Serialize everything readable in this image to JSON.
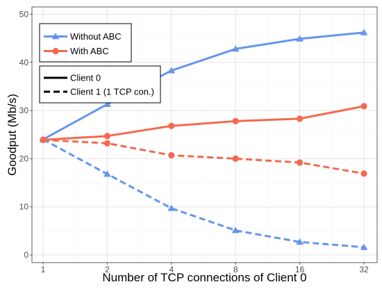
{
  "chart_data": {
    "type": "line",
    "xlabel": "Number of TCP connections of Client 0",
    "ylabel": "Goodput (Mb/s)",
    "x_scale": "log2",
    "categories": [
      "1",
      "2",
      "4",
      "8",
      "16",
      "32"
    ],
    "x": [
      1,
      2,
      4,
      8,
      16,
      32
    ],
    "ylim": [
      0,
      50
    ],
    "yticks": [
      0,
      10,
      20,
      30,
      40,
      50
    ],
    "grid": true,
    "series": [
      {
        "name": "Without ABC",
        "client": "Client 0",
        "values": [
          24.0,
          31.3,
          38.3,
          42.8,
          44.9,
          46.2
        ]
      },
      {
        "name": "With ABC",
        "client": "Client 0",
        "values": [
          23.9,
          24.7,
          26.8,
          27.8,
          28.3,
          30.9
        ]
      },
      {
        "name": "Without ABC",
        "client": "Client 1 (1 TCP con.)",
        "values": [
          24.0,
          16.8,
          9.7,
          5.1,
          2.7,
          1.6
        ]
      },
      {
        "name": "With ABC",
        "client": "Client 1 (1 TCP con.)",
        "values": [
          23.9,
          23.2,
          20.7,
          20.0,
          19.2,
          16.9
        ]
      }
    ],
    "legend": {
      "placement": "top-left",
      "algorithms": [
        {
          "label": "Without ABC",
          "color": "#6495ED",
          "marker": "triangle"
        },
        {
          "label": "With ABC",
          "color": "#F4694E",
          "marker": "circle"
        }
      ],
      "clients": [
        {
          "label": "Client 0",
          "linestyle": "solid"
        },
        {
          "label": "Client 1 (1 TCP con.)",
          "linestyle": "dashed"
        }
      ]
    },
    "colors": {
      "without_abc": "#6495ED",
      "with_abc": "#F4694E"
    }
  }
}
